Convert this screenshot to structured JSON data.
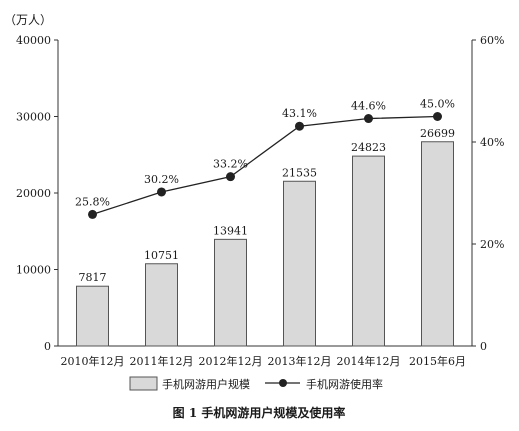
{
  "chart_data": {
    "type": "bar+line",
    "title": "图 1   手机网游用户规模及使用率",
    "y_unit_left": "（万人）",
    "categories": [
      "2010年12月",
      "2011年12月",
      "2012年12月",
      "2013年12月",
      "2014年12月",
      "2015年6月"
    ],
    "series": [
      {
        "name": "手机网游用户规模",
        "type": "bar",
        "axis": "left",
        "values": [
          7817,
          10751,
          13941,
          21535,
          24823,
          26699
        ],
        "labels": [
          "7817",
          "10751",
          "13941",
          "21535",
          "24823",
          "26699"
        ]
      },
      {
        "name": "手机网游使用率",
        "type": "line",
        "axis": "right",
        "values": [
          25.8,
          30.2,
          33.2,
          43.1,
          44.6,
          45.0
        ],
        "labels": [
          "25.8%",
          "30.2%",
          "33.2%",
          "43.1%",
          "44.6%",
          "45.0%"
        ]
      }
    ],
    "y_left": {
      "ylim": [
        0,
        40000
      ],
      "ticks": [
        "0",
        "10000",
        "20000",
        "30000",
        "40000"
      ]
    },
    "y_right": {
      "ylim": [
        0,
        60
      ],
      "ticks": [
        "0",
        "20%",
        "40%",
        "60%"
      ]
    },
    "grid": false,
    "legend_position": "bottom",
    "colors": {
      "bar_fill": "#d9d9d9",
      "bar_stroke": "#555555",
      "line": "#222222",
      "axis": "#333333"
    }
  }
}
